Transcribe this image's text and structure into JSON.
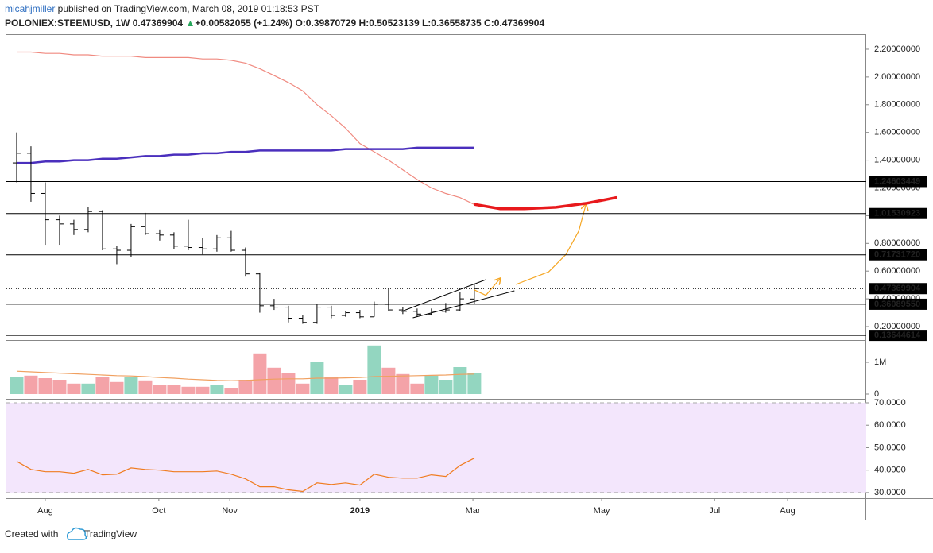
{
  "header": {
    "author": "micahjmiller",
    "published": " published on TradingView.com, March 08, 2019 01:18:53 PST",
    "symbol": "POLONIEX:STEEMUSD, 1W",
    "last": "0.47369904",
    "icon": "▲",
    "change": "+0.00582055 (+1.24%)",
    "o_label": "O:",
    "o": "0.39870729",
    "h_label": "H:",
    "h": "0.50523139",
    "l_label": "L:",
    "l": "0.36558735",
    "c_label": "C:",
    "c": "0.47369904"
  },
  "footer": {
    "created": "Created with",
    "brand": "TradingView"
  },
  "chart_data": [
    {
      "type": "ohlc",
      "color": "#000000",
      "x": [
        0,
        1,
        2,
        3,
        4,
        5,
        6,
        7,
        8,
        9,
        10,
        11,
        12,
        13,
        14,
        15,
        16,
        17,
        18,
        19,
        20,
        21,
        22,
        23,
        24,
        25,
        26,
        27,
        28,
        29,
        30,
        31,
        32
      ],
      "open": [
        1.38,
        1.45,
        1.16,
        0.97,
        0.94,
        0.9,
        1.03,
        0.76,
        0.75,
        0.92,
        0.87,
        0.86,
        0.78,
        0.77,
        0.76,
        0.84,
        0.75,
        0.58,
        0.35,
        0.34,
        0.26,
        0.23,
        0.34,
        0.28,
        0.3,
        0.27,
        0.36,
        0.32,
        0.31,
        0.29,
        0.31,
        0.32,
        0.39870729
      ],
      "high": [
        1.6,
        1.5,
        1.24,
        1.0,
        0.97,
        1.06,
        1.04,
        0.78,
        0.94,
        1.02,
        0.9,
        0.88,
        0.97,
        0.84,
        0.86,
        0.89,
        0.77,
        0.59,
        0.4,
        0.35,
        0.28,
        0.36,
        0.35,
        0.31,
        0.32,
        0.38,
        0.47,
        0.34,
        0.33,
        0.33,
        0.37,
        0.45,
        0.50523139
      ],
      "low": [
        1.24,
        1.1,
        0.79,
        0.79,
        0.86,
        0.88,
        0.75,
        0.65,
        0.7,
        0.86,
        0.82,
        0.76,
        0.75,
        0.72,
        0.74,
        0.74,
        0.56,
        0.3,
        0.32,
        0.23,
        0.22,
        0.22,
        0.26,
        0.27,
        0.26,
        0.27,
        0.31,
        0.29,
        0.27,
        0.28,
        0.3,
        0.31,
        0.36558735
      ],
      "close": [
        1.45,
        1.16,
        0.97,
        0.94,
        0.9,
        1.03,
        0.76,
        0.75,
        0.92,
        0.87,
        0.86,
        0.78,
        0.77,
        0.76,
        0.84,
        0.75,
        0.58,
        0.35,
        0.34,
        0.26,
        0.23,
        0.34,
        0.28,
        0.3,
        0.27,
        0.36,
        0.32,
        0.31,
        0.29,
        0.31,
        0.32,
        0.4,
        0.47369904
      ],
      "lines": [
        {
          "color": "#f08a80",
          "values": [
            2.18,
            2.18,
            2.17,
            2.17,
            2.16,
            2.16,
            2.15,
            2.15,
            2.15,
            2.14,
            2.14,
            2.14,
            2.14,
            2.13,
            2.13,
            2.12,
            2.1,
            2.06,
            2.01,
            1.96,
            1.9,
            1.8,
            1.72,
            1.63,
            1.52,
            1.46,
            1.4,
            1.33,
            1.26,
            1.2,
            1.16,
            1.13,
            1.08
          ]
        },
        {
          "color": "#4a2fbd",
          "values": [
            1.38,
            1.38,
            1.39,
            1.39,
            1.4,
            1.4,
            1.41,
            1.41,
            1.42,
            1.43,
            1.43,
            1.44,
            1.44,
            1.45,
            1.45,
            1.46,
            1.46,
            1.47,
            1.47,
            1.47,
            1.47,
            1.47,
            1.47,
            1.48,
            1.48,
            1.48,
            1.48,
            1.48,
            1.49,
            1.49,
            1.49,
            1.49,
            1.49
          ]
        }
      ],
      "levels": [
        1.24603449,
        1.01530923,
        {
          "value": 0.7173172,
          "label": "0.71731720"
        },
        {
          "value": 0.3608955,
          "label": "0.36089550"
        },
        0.13644614
      ],
      "last_price": 0.47369904,
      "projection": {
        "color": "#e8191c",
        "x": [
          32.06,
          33.8,
          35.5,
          37.7,
          39.9,
          41.9
        ],
        "values": [
          1.08,
          1.05,
          1.05,
          1.06,
          1.09,
          1.13
        ]
      },
      "trendlines": [
        {
          "color": "#000000",
          "x": [
            26.9,
            32.8
          ],
          "values": [
            0.309,
            0.538
          ]
        },
        {
          "color": "#000000",
          "x": [
            27.7,
            34.8
          ],
          "values": [
            0.263,
            0.458
          ]
        }
      ],
      "arrows": [
        {
          "color": "#f5a623",
          "x": [
            32.0,
            32.8,
            33.8
          ],
          "values": [
            0.465,
            0.425,
            0.546
          ]
        },
        {
          "color": "#f5a623",
          "x": [
            34.9,
            37.2,
            38.4,
            39.3,
            39.8
          ],
          "values": [
            0.504,
            0.595,
            0.72,
            0.89,
            1.08
          ]
        }
      ],
      "xlim": [
        -0.72,
        59.4
      ],
      "xticks": [
        {
          "value": 2.0,
          "label": "Aug"
        },
        {
          "value": 9.94,
          "label": "Oct"
        },
        {
          "value": 14.9,
          "label": "Nov"
        },
        {
          "value": 24.0,
          "label": "2019"
        },
        {
          "value": 31.9,
          "label": "Mar"
        },
        {
          "value": 40.9,
          "label": "May"
        },
        {
          "value": 48.8,
          "label": "Jul"
        },
        {
          "value": 53.9,
          "label": "Aug"
        }
      ],
      "ylim": [
        0.1026,
        2.303
      ],
      "yticks": [
        {
          "value": 0.2,
          "label": "0.20000000"
        },
        {
          "value": 0.4,
          "label": "0.40000000"
        },
        {
          "value": 0.6,
          "label": "0.60000000"
        },
        {
          "value": 0.8,
          "label": "0.80000000"
        },
        {
          "value": 1.0,
          "label": "1.00000000"
        },
        {
          "value": 1.2,
          "label": "1.20000000"
        },
        {
          "value": 1.4,
          "label": "1.40000000"
        },
        {
          "value": 1.6,
          "label": "1.60000000"
        },
        {
          "value": 1.8,
          "label": "1.80000000"
        },
        {
          "value": 2.0,
          "label": "2.00000000"
        },
        {
          "value": 2.2,
          "label": "2.20000000"
        }
      ]
    },
    {
      "type": "bar",
      "up_color": "#93d6c0",
      "down_color": "#f4a3a8",
      "ma_color": "#f0a060",
      "x": [
        0,
        1,
        2,
        3,
        4,
        5,
        6,
        7,
        8,
        9,
        10,
        11,
        12,
        13,
        14,
        15,
        16,
        17,
        18,
        19,
        20,
        21,
        22,
        23,
        24,
        25,
        26,
        27,
        28,
        29,
        30,
        31,
        32
      ],
      "values": [
        530000,
        580000,
        500000,
        450000,
        330000,
        330000,
        530000,
        380000,
        530000,
        430000,
        300000,
        300000,
        230000,
        230000,
        280000,
        200000,
        450000,
        1280000,
        830000,
        650000,
        330000,
        1000000,
        530000,
        300000,
        450000,
        1530000,
        830000,
        630000,
        330000,
        580000,
        450000,
        850000,
        650000
      ],
      "ma": [
        720000,
        700000,
        680000,
        660000,
        640000,
        620000,
        600000,
        580000,
        570000,
        550000,
        520000,
        500000,
        470000,
        450000,
        430000,
        420000,
        430000,
        450000,
        470000,
        480000,
        480000,
        500000,
        500000,
        510000,
        520000,
        550000,
        560000,
        570000,
        580000,
        590000,
        600000,
        620000,
        630000
      ],
      "ylim": [
        -100000,
        1650000
      ],
      "yticks": [
        0,
        {
          "value": 1000000,
          "label": "1M"
        }
      ]
    },
    {
      "type": "line",
      "color": "#f07c20",
      "band_color": "#f3e6fc",
      "x": [
        0,
        1,
        2,
        3,
        4,
        5,
        6,
        7,
        8,
        9,
        10,
        11,
        12,
        13,
        14,
        15,
        16,
        17,
        18,
        19,
        20,
        21,
        22,
        23,
        24,
        25,
        26,
        27,
        28,
        29,
        30,
        31,
        32
      ],
      "values": [
        43.9,
        40.3,
        39.3,
        39.3,
        38.6,
        40.3,
        37.9,
        38.2,
        41.0,
        40.3,
        40.0,
        39.3,
        39.3,
        39.3,
        39.6,
        38.2,
        36.1,
        32.6,
        32.6,
        31.2,
        30.5,
        34.3,
        33.6,
        34.3,
        33.3,
        38.2,
        36.8,
        36.4,
        36.4,
        37.9,
        37.2,
        42.1,
        45.3
      ],
      "band": [
        30,
        70
      ],
      "ylim": [
        28.2,
        70.35
      ],
      "yticks": [
        {
          "value": 30,
          "label": "30.0000"
        },
        {
          "value": 40,
          "label": "40.0000"
        },
        {
          "value": 50,
          "label": "50.0000"
        },
        {
          "value": 60,
          "label": "60.0000"
        },
        {
          "value": 70,
          "label": "70.0000"
        }
      ]
    }
  ]
}
